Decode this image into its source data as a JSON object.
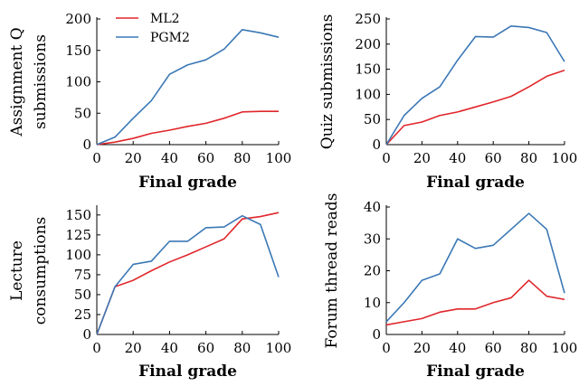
{
  "colors": {
    "ML2": "#e0262b",
    "PGM2": "#3b78b5"
  },
  "legend": {
    "location": "upper-left of first chart",
    "items": [
      "ML2",
      "PGM2"
    ]
  },
  "chart_data": [
    {
      "type": "line",
      "ylabel": [
        "Assignment Q",
        "submissions"
      ],
      "xlabel": "Final grade",
      "xlim": [
        0,
        100
      ],
      "ylim": [
        0,
        200
      ],
      "xticks": [
        "0",
        "20",
        "40",
        "60",
        "80",
        "100"
      ],
      "yticks": [
        "0",
        "50",
        "100",
        "150",
        "200"
      ],
      "x": [
        0,
        10,
        20,
        30,
        40,
        50,
        60,
        70,
        80,
        90,
        100
      ],
      "series": [
        {
          "name": "ML2",
          "values": [
            0,
            4,
            10,
            18,
            23,
            29,
            34,
            42,
            52,
            53,
            53
          ]
        },
        {
          "name": "PGM2",
          "values": [
            0,
            12,
            42,
            70,
            112,
            127,
            135,
            152,
            183,
            178,
            171
          ]
        }
      ]
    },
    {
      "type": "line",
      "ylabel": [
        "Quiz submissions"
      ],
      "xlabel": "Final grade",
      "xlim": [
        0,
        100
      ],
      "ylim": [
        0,
        250
      ],
      "xticks": [
        "0",
        "20",
        "40",
        "60",
        "80",
        "100"
      ],
      "yticks": [
        "0",
        "50",
        "100",
        "150",
        "200",
        "250"
      ],
      "x": [
        0,
        10,
        20,
        30,
        40,
        50,
        60,
        70,
        80,
        90,
        100
      ],
      "series": [
        {
          "name": "ML2",
          "values": [
            0,
            38,
            45,
            58,
            65,
            75,
            85,
            96,
            115,
            136,
            148
          ]
        },
        {
          "name": "PGM2",
          "values": [
            0,
            58,
            92,
            115,
            168,
            215,
            214,
            236,
            233,
            223,
            165
          ]
        }
      ]
    },
    {
      "type": "line",
      "ylabel": [
        "Lecture",
        "consumptions"
      ],
      "xlabel": "Final grade",
      "xlim": [
        0,
        100
      ],
      "ylim": [
        0,
        160
      ],
      "xticks": [
        "0",
        "20",
        "40",
        "60",
        "80",
        "100"
      ],
      "yticks": [
        "0",
        "25",
        "50",
        "75",
        "100",
        "125",
        "150"
      ],
      "x": [
        0,
        10,
        20,
        30,
        40,
        50,
        60,
        70,
        80,
        90,
        100
      ],
      "series": [
        {
          "name": "ML2",
          "values": [
            0,
            60,
            68,
            80,
            91,
            100,
            110,
            120,
            145,
            148,
            153
          ]
        },
        {
          "name": "PGM2",
          "values": [
            0,
            60,
            88,
            92,
            117,
            117,
            134,
            135,
            149,
            138,
            72
          ]
        }
      ]
    },
    {
      "type": "line",
      "ylabel": [
        "Forum thread reads"
      ],
      "xlabel": "Final grade",
      "xlim": [
        0,
        100
      ],
      "ylim": [
        0,
        40
      ],
      "xticks": [
        "0",
        "20",
        "40",
        "60",
        "80",
        "100"
      ],
      "yticks": [
        "0",
        "10",
        "20",
        "30",
        "40"
      ],
      "x": [
        0,
        10,
        20,
        30,
        40,
        50,
        60,
        70,
        80,
        90,
        100
      ],
      "series": [
        {
          "name": "ML2",
          "values": [
            3,
            4,
            5,
            7,
            8,
            8,
            10,
            11.5,
            17,
            12,
            11
          ]
        },
        {
          "name": "PGM2",
          "values": [
            4,
            10,
            17,
            19,
            30,
            27,
            28,
            33,
            38,
            33,
            13
          ]
        }
      ]
    }
  ]
}
